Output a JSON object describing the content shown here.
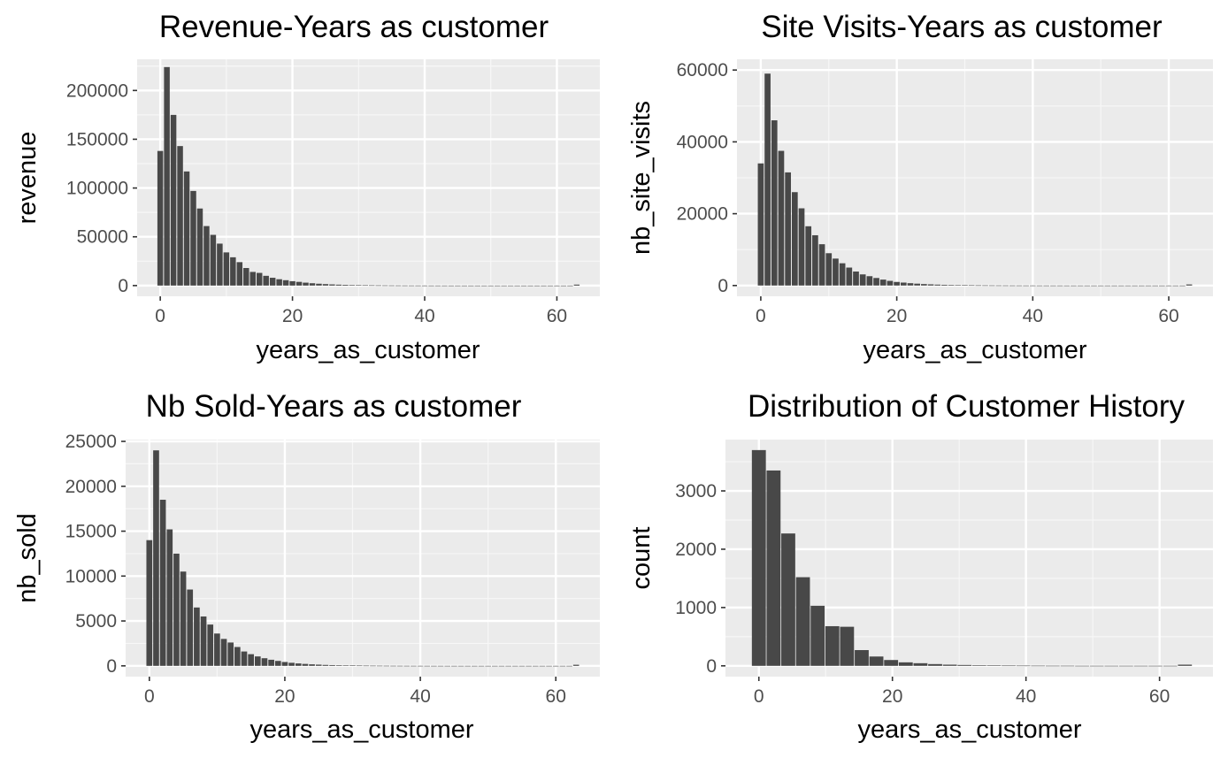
{
  "chart_data": [
    {
      "type": "bar",
      "title": "Revenue-Years as customer",
      "xlabel": "years_as_customer",
      "ylabel": "revenue",
      "xlim": [
        -3.5,
        66.5
      ],
      "ylim": [
        -11000,
        232000
      ],
      "xticks": [
        "0",
        "20",
        "40",
        "60"
      ],
      "yticks": [
        "0",
        "50000",
        "100000",
        "150000",
        "200000"
      ],
      "grid": true,
      "categories": [
        0,
        1,
        2,
        3,
        4,
        5,
        6,
        7,
        8,
        9,
        10,
        11,
        12,
        13,
        14,
        15,
        16,
        17,
        18,
        19,
        20,
        21,
        22,
        23,
        24,
        25,
        26,
        27,
        28,
        29,
        30,
        31,
        32,
        33,
        34,
        35,
        36,
        37,
        38,
        39,
        40,
        41,
        42,
        43,
        44,
        45,
        46,
        47,
        48,
        49,
        50,
        51,
        52,
        53,
        54,
        55,
        56,
        57,
        58,
        59,
        60,
        61,
        62,
        63
      ],
      "values": [
        138000,
        224000,
        175000,
        143000,
        117000,
        97000,
        79000,
        61000,
        52000,
        43000,
        34000,
        29000,
        24000,
        18000,
        14000,
        13000,
        10000,
        8000,
        6500,
        5500,
        4500,
        3800,
        3000,
        2400,
        1900,
        1500,
        1200,
        950,
        760,
        600,
        480,
        380,
        300,
        240,
        190,
        150,
        120,
        95,
        75,
        60,
        48,
        38,
        30,
        24,
        19,
        15,
        12,
        10,
        8,
        6,
        5,
        4,
        3,
        3,
        2,
        2,
        2,
        1,
        1,
        1,
        1,
        1,
        1,
        1000
      ]
    },
    {
      "type": "bar",
      "title": "Site Visits-Years as customer",
      "xlabel": "years_as_customer",
      "ylabel": "nb_site_visits",
      "xlim": [
        -3.5,
        66.5
      ],
      "ylim": [
        -3000,
        63000
      ],
      "xticks": [
        "0",
        "20",
        "40",
        "60"
      ],
      "yticks": [
        "0",
        "20000",
        "40000",
        "60000"
      ],
      "grid": true,
      "categories": [
        0,
        1,
        2,
        3,
        4,
        5,
        6,
        7,
        8,
        9,
        10,
        11,
        12,
        13,
        14,
        15,
        16,
        17,
        18,
        19,
        20,
        21,
        22,
        23,
        24,
        25,
        26,
        27,
        28,
        29,
        30,
        31,
        32,
        33,
        34,
        35,
        36,
        37,
        38,
        39,
        40,
        41,
        42,
        43,
        44,
        45,
        46,
        47,
        48,
        49,
        50,
        51,
        52,
        53,
        54,
        55,
        56,
        57,
        58,
        59,
        60,
        61,
        62,
        63
      ],
      "values": [
        34000,
        59000,
        46000,
        37500,
        31500,
        26000,
        21500,
        16500,
        14000,
        11500,
        9000,
        7500,
        6200,
        5000,
        3900,
        3100,
        2600,
        2100,
        1650,
        1300,
        1000,
        820,
        650,
        520,
        410,
        330,
        260,
        210,
        170,
        135,
        105,
        85,
        65,
        52,
        40,
        32,
        26,
        20,
        16,
        12,
        10,
        8,
        6,
        5,
        4,
        3,
        2,
        2,
        1,
        1,
        1,
        1,
        1,
        1,
        1,
        1,
        1,
        1,
        1,
        1,
        1,
        1,
        1,
        300
      ]
    },
    {
      "type": "bar",
      "title": "Nb Sold-Years as customer",
      "xlabel": "years_as_customer",
      "ylabel": "nb_sold",
      "xlim": [
        -3.5,
        66.5
      ],
      "ylim": [
        -1200,
        25200
      ],
      "xticks": [
        "0",
        "20",
        "40",
        "60"
      ],
      "yticks": [
        "0",
        "5000",
        "10000",
        "15000",
        "20000",
        "25000"
      ],
      "grid": true,
      "categories": [
        0,
        1,
        2,
        3,
        4,
        5,
        6,
        7,
        8,
        9,
        10,
        11,
        12,
        13,
        14,
        15,
        16,
        17,
        18,
        19,
        20,
        21,
        22,
        23,
        24,
        25,
        26,
        27,
        28,
        29,
        30,
        31,
        32,
        33,
        34,
        35,
        36,
        37,
        38,
        39,
        40,
        41,
        42,
        43,
        44,
        45,
        46,
        47,
        48,
        49,
        50,
        51,
        52,
        53,
        54,
        55,
        56,
        57,
        58,
        59,
        60,
        61,
        62,
        63
      ],
      "values": [
        14000,
        24000,
        18500,
        15200,
        12500,
        10500,
        8500,
        6500,
        5500,
        4600,
        3600,
        3000,
        2600,
        2100,
        1600,
        1300,
        1050,
        850,
        680,
        550,
        430,
        340,
        270,
        215,
        170,
        135,
        105,
        85,
        68,
        54,
        43,
        34,
        27,
        21,
        17,
        13,
        10,
        8,
        6,
        5,
        4,
        3,
        2,
        2,
        1,
        1,
        1,
        1,
        1,
        1,
        1,
        1,
        1,
        1,
        1,
        1,
        1,
        1,
        1,
        1,
        1,
        1,
        1,
        120
      ]
    },
    {
      "type": "bar",
      "title": "Distribution of Customer History",
      "xlabel": "years_as_customer",
      "ylabel": "count",
      "xlim": [
        -5,
        68
      ],
      "ylim": [
        -185,
        3880
      ],
      "xticks": [
        "0",
        "20",
        "40",
        "60"
      ],
      "yticks": [
        "0",
        "1000",
        "2000",
        "3000"
      ],
      "grid": true,
      "bin_width": 2.2,
      "categories": [
        0,
        2.2,
        4.4,
        6.6,
        8.8,
        11,
        13.2,
        15.4,
        17.6,
        19.8,
        22,
        24.2,
        26.4,
        28.6,
        30.8,
        33,
        35.2,
        37.4,
        39.6,
        41.8,
        44,
        46.2,
        48.4,
        50.6,
        52.8,
        55,
        57.2,
        59.4,
        61.6,
        63.8
      ],
      "values": [
        3700,
        3350,
        2270,
        1520,
        1030,
        680,
        670,
        270,
        160,
        100,
        60,
        45,
        30,
        20,
        15,
        10,
        8,
        5,
        4,
        3,
        2,
        2,
        1,
        1,
        1,
        1,
        1,
        1,
        1,
        20
      ]
    }
  ]
}
